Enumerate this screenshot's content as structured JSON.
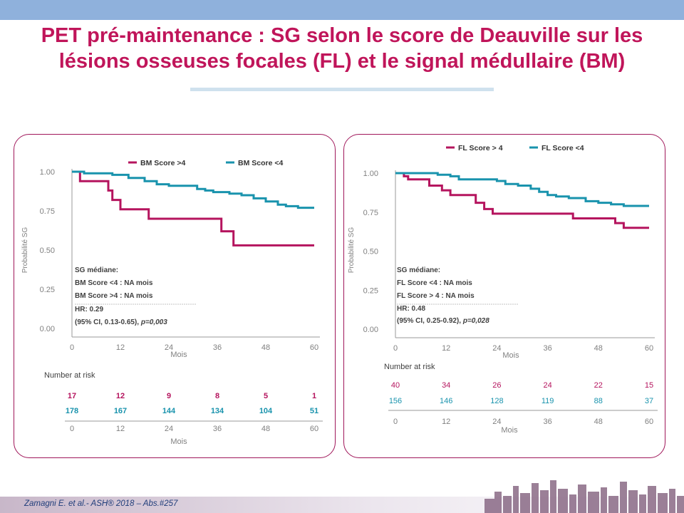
{
  "title": {
    "line1": "PET pré-maintenance : SG selon le score de Deauville  sur les",
    "line2": "lésions osseuses focales (FL) et le signal médullaire (BM)"
  },
  "footer": {
    "citation": "Zamagni E. et al.- ASH® 2018 – Abs.#257"
  },
  "colors": {
    "title": "#c0155a",
    "series_high": "#b5145e",
    "series_low": "#1993ad",
    "panel_border": "#a0175a"
  },
  "chart_data": [
    {
      "type": "line",
      "ylabel": "Probabilité SG",
      "xlabel": "Mois",
      "xlim": [
        0,
        60
      ],
      "ylim": [
        0,
        1
      ],
      "xticks": [
        "0",
        "12",
        "24",
        "36",
        "48",
        "60"
      ],
      "yticks": [
        "0.00",
        "0.25",
        "0.50",
        "0.75",
        "1.00"
      ],
      "legend": "top",
      "series": [
        {
          "name": "BM Score >4",
          "color": "#b5145e",
          "x": [
            0,
            2,
            2,
            9,
            9,
            10,
            10,
            12,
            12,
            19,
            19,
            37,
            37,
            40,
            40,
            60
          ],
          "y": [
            1.0,
            1.0,
            0.94,
            0.94,
            0.88,
            0.88,
            0.82,
            0.82,
            0.76,
            0.76,
            0.7,
            0.7,
            0.62,
            0.62,
            0.53,
            0.53
          ]
        },
        {
          "name": "BM Score <4",
          "color": "#1993ad",
          "x": [
            0,
            3,
            3,
            10,
            10,
            14,
            14,
            18,
            18,
            21,
            21,
            24,
            24,
            31,
            31,
            33,
            33,
            35,
            35,
            39,
            39,
            42,
            42,
            45,
            45,
            48,
            48,
            51,
            51,
            53,
            53,
            56,
            56,
            60
          ],
          "y": [
            1.0,
            1.0,
            0.99,
            0.99,
            0.98,
            0.98,
            0.96,
            0.96,
            0.94,
            0.94,
            0.92,
            0.92,
            0.91,
            0.91,
            0.89,
            0.89,
            0.88,
            0.88,
            0.87,
            0.87,
            0.86,
            0.86,
            0.85,
            0.85,
            0.83,
            0.83,
            0.81,
            0.81,
            0.79,
            0.79,
            0.78,
            0.78,
            0.77,
            0.77
          ]
        }
      ],
      "annotation": {
        "l1": "SG médiane:",
        "l2": "BM Score  <4 : NA mois",
        "l3": "BM Score  >4 : NA mois",
        "l4": "HR: 0.29",
        "l5a": "(95% CI, 0.13-0.65), ",
        "l5b": "p=0,003"
      },
      "risk_title": "Number at risk",
      "risk": [
        {
          "color": "#b5145e",
          "values": [
            "17",
            "12",
            "9",
            "8",
            "5",
            "1"
          ]
        },
        {
          "color": "#1993ad",
          "values": [
            "178",
            "167",
            "144",
            "134",
            "104",
            "51"
          ]
        }
      ],
      "risk_xlabel": "Mois"
    },
    {
      "type": "line",
      "ylabel": "Probabilité SG",
      "xlabel": "Mois",
      "xlim": [
        0,
        60
      ],
      "ylim": [
        0,
        1
      ],
      "xticks": [
        "0",
        "12",
        "24",
        "36",
        "48",
        "60"
      ],
      "yticks": [
        "0.00",
        "0.25",
        "0.50",
        "0.75",
        "1.00"
      ],
      "legend": "top",
      "series": [
        {
          "name": "FL Score  > 4",
          "color": "#b5145e",
          "x": [
            0,
            2,
            2,
            3,
            3,
            8,
            8,
            11,
            11,
            13,
            13,
            19,
            19,
            21,
            21,
            23,
            23,
            42,
            42,
            52,
            52,
            54,
            54,
            60
          ],
          "y": [
            1.0,
            1.0,
            0.98,
            0.98,
            0.96,
            0.96,
            0.92,
            0.92,
            0.89,
            0.89,
            0.86,
            0.86,
            0.81,
            0.81,
            0.77,
            0.77,
            0.74,
            0.74,
            0.71,
            0.71,
            0.68,
            0.68,
            0.65,
            0.65
          ]
        },
        {
          "name": "FL Score <4",
          "color": "#1993ad",
          "x": [
            0,
            10,
            10,
            13,
            13,
            15,
            15,
            24,
            24,
            26,
            26,
            29,
            29,
            32,
            32,
            34,
            34,
            36,
            36,
            38,
            38,
            41,
            41,
            45,
            45,
            48,
            48,
            51,
            51,
            54,
            54,
            60
          ],
          "y": [
            1.0,
            1.0,
            0.99,
            0.99,
            0.98,
            0.98,
            0.96,
            0.96,
            0.95,
            0.95,
            0.93,
            0.93,
            0.92,
            0.92,
            0.9,
            0.9,
            0.88,
            0.88,
            0.86,
            0.86,
            0.85,
            0.85,
            0.84,
            0.84,
            0.82,
            0.82,
            0.81,
            0.81,
            0.8,
            0.8,
            0.79,
            0.79
          ]
        }
      ],
      "annotation": {
        "l1": "SG médiane:",
        "l2": "FL Score  <4 : NA mois",
        "l3": "FL Score  > 4 : NA mois",
        "l4": "HR: 0.48",
        "l5a": "(95% CI, 0.25-0.92), ",
        "l5b": "p=0,028"
      },
      "risk_title": "Number at risk",
      "risk": [
        {
          "color": "#b5145e",
          "values": [
            "40",
            "34",
            "26",
            "24",
            "22",
            "15"
          ]
        },
        {
          "color": "#1993ad",
          "values": [
            "156",
            "146",
            "128",
            "119",
            "88",
            "37"
          ]
        }
      ],
      "risk_xlabel": "Mois"
    }
  ]
}
